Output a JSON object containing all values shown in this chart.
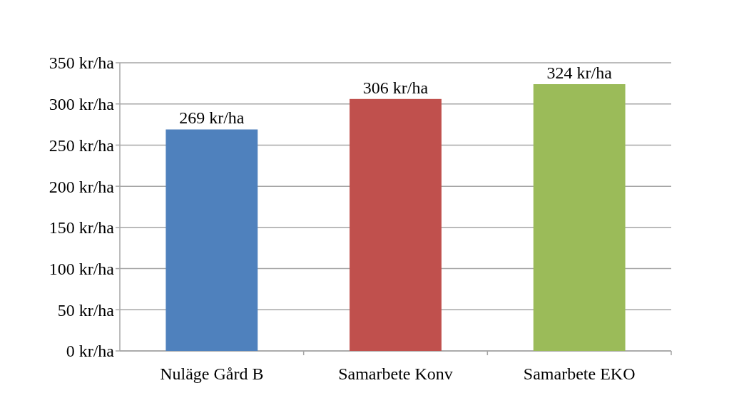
{
  "chart_data": {
    "type": "bar",
    "categories": [
      "Nuläge Gård B",
      "Samarbete Konv",
      "Samarbete EKO"
    ],
    "values": [
      269,
      306,
      324
    ],
    "colors": [
      "#4f81bd",
      "#c0504d",
      "#9bbb59"
    ],
    "value_labels": [
      "269 kr/ha",
      "306 kr/ha",
      "324 kr/ha"
    ],
    "ylim": [
      0,
      350
    ],
    "yticks": [
      {
        "value": 0,
        "label": "0 kr/ha"
      },
      {
        "value": 50,
        "label": "50 kr/ha"
      },
      {
        "value": 100,
        "label": "100 kr/ha"
      },
      {
        "value": 150,
        "label": "150 kr/ha"
      },
      {
        "value": 200,
        "label": "200 kr/ha"
      },
      {
        "value": 250,
        "label": "250 kr/ha"
      },
      {
        "value": 300,
        "label": "300 kr/ha"
      },
      {
        "value": 350,
        "label": "350 kr/ha"
      }
    ],
    "grid": true
  }
}
